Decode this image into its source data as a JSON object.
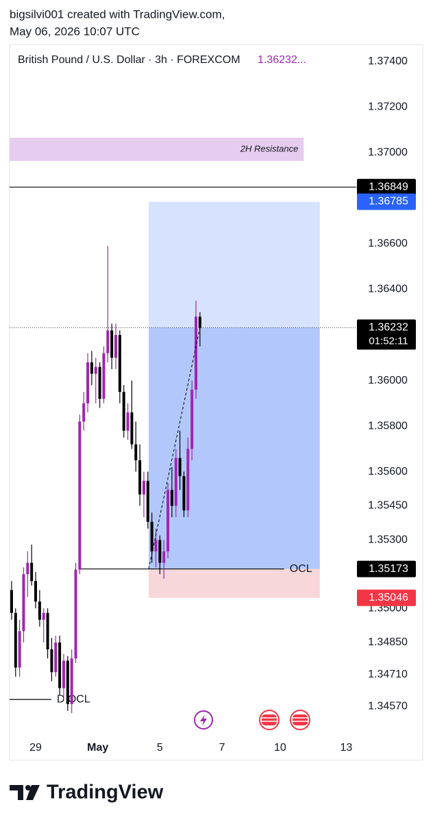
{
  "header": {
    "line1": "bigsilvi001 created with TradingView.com,",
    "line2": "May 06, 2026 10:07 UTC"
  },
  "chart_data": {
    "type": "candlestick",
    "title": "British Pound / U.S. Dollar · 3h · FOREXCOM",
    "last_price_label": "1.36232...",
    "up_color": "#9c27b0",
    "down_color": "#000000",
    "x": [
      0,
      1,
      2,
      3,
      4,
      5,
      6,
      7,
      8,
      9,
      10,
      11,
      12,
      13,
      14,
      15,
      16,
      17,
      18,
      19,
      20,
      21,
      22,
      23,
      24,
      25,
      26,
      27,
      28,
      29,
      30,
      31,
      32,
      33,
      34,
      35,
      36,
      37,
      38,
      39,
      40,
      41,
      42,
      43,
      44,
      45,
      46,
      47
    ],
    "open": [
      1.3508,
      1.3498,
      1.3474,
      1.349,
      1.3515,
      1.352,
      1.3512,
      1.3503,
      1.3495,
      1.3498,
      1.3482,
      1.3472,
      1.3485,
      1.3465,
      1.3477,
      1.3458,
      1.3478,
      1.3517,
      1.3582,
      1.359,
      1.3608,
      1.3603,
      1.3606,
      1.3592,
      1.3612,
      1.3622,
      1.361,
      1.362,
      1.3595,
      1.3578,
      1.3586,
      1.3572,
      1.3565,
      1.355,
      1.3556,
      1.3538,
      1.3525,
      1.353,
      1.352,
      1.3525,
      1.3552,
      1.3545,
      1.3566,
      1.3558,
      1.3543,
      1.357,
      1.3596,
      1.3628
    ],
    "high": [
      1.3512,
      1.35,
      1.3495,
      1.3518,
      1.3525,
      1.3528,
      1.3516,
      1.3508,
      1.35,
      1.35,
      1.3487,
      1.3488,
      1.3488,
      1.348,
      1.3479,
      1.3482,
      1.352,
      1.3585,
      1.3595,
      1.3612,
      1.3613,
      1.361,
      1.3608,
      1.3615,
      1.3659,
      1.3625,
      1.3625,
      1.3622,
      1.3598,
      1.359,
      1.36,
      1.3582,
      1.3572,
      1.356,
      1.356,
      1.3542,
      1.3535,
      1.3532,
      1.353,
      1.3555,
      1.3562,
      1.357,
      1.3578,
      1.356,
      1.3575,
      1.36,
      1.3635,
      1.363
    ],
    "low": [
      1.3495,
      1.347,
      1.347,
      1.3485,
      1.3505,
      1.351,
      1.35,
      1.3492,
      1.3485,
      1.3478,
      1.3468,
      1.347,
      1.3462,
      1.346,
      1.3455,
      1.3454,
      1.3476,
      1.3515,
      1.3578,
      1.3586,
      1.3598,
      1.359,
      1.3588,
      1.359,
      1.3608,
      1.3605,
      1.3605,
      1.359,
      1.3575,
      1.3574,
      1.357,
      1.356,
      1.3545,
      1.354,
      1.3535,
      1.352,
      1.3518,
      1.3515,
      1.3513,
      1.3522,
      1.354,
      1.354,
      1.3552,
      1.354,
      1.354,
      1.3565,
      1.3592,
      1.3615
    ],
    "close": [
      1.3498,
      1.3474,
      1.349,
      1.3515,
      1.352,
      1.3512,
      1.3503,
      1.3495,
      1.3498,
      1.3482,
      1.3472,
      1.3485,
      1.3465,
      1.3477,
      1.3458,
      1.3478,
      1.3517,
      1.3582,
      1.359,
      1.3608,
      1.3603,
      1.3606,
      1.3592,
      1.3612,
      1.3622,
      1.361,
      1.362,
      1.3595,
      1.3578,
      1.3586,
      1.3572,
      1.3565,
      1.355,
      1.3556,
      1.3538,
      1.3525,
      1.353,
      1.352,
      1.3525,
      1.3552,
      1.3545,
      1.3566,
      1.3558,
      1.3543,
      1.357,
      1.3596,
      1.3628,
      1.36232
    ],
    "xlim": [
      -0.5,
      86
    ],
    "xticks": [
      {
        "value": 6,
        "label": "29"
      },
      {
        "value": 21.5,
        "label": "May"
      },
      {
        "value": 37,
        "label": "5"
      },
      {
        "value": 52.5,
        "label": "7"
      },
      {
        "value": 67,
        "label": "10"
      },
      {
        "value": 83.5,
        "label": "13"
      }
    ],
    "ylim": [
      1.34438,
      1.37475
    ],
    "yticks": [
      {
        "value": 1.374,
        "label": "1.37400"
      },
      {
        "value": 1.372,
        "label": "1.37200"
      },
      {
        "value": 1.37,
        "label": "1.37000"
      },
      {
        "value": 1.366,
        "label": "1.36600"
      },
      {
        "value": 1.364,
        "label": "1.36400"
      },
      {
        "value": 1.36,
        "label": "1.36000"
      },
      {
        "value": 1.358,
        "label": "1.35800"
      },
      {
        "value": 1.356,
        "label": "1.35600"
      },
      {
        "value": 1.3545,
        "label": "1.35450"
      },
      {
        "value": 1.353,
        "label": "1.35300"
      },
      {
        "value": 1.35,
        "label": "1.35000"
      },
      {
        "value": 1.3485,
        "label": "1.34850"
      },
      {
        "value": 1.3471,
        "label": "1.34710"
      },
      {
        "value": 1.3457,
        "label": "1.34570"
      }
    ],
    "zone": {
      "label": "2H Resistance",
      "top": 1.37066,
      "bottom": 1.36964,
      "x_end": 72.9,
      "color": "#e6cdef"
    },
    "position": {
      "target": 1.36785,
      "entry": 1.35173,
      "stop": 1.35046,
      "x_start": 34.2,
      "x_end": 76.9
    },
    "lines": [
      {
        "value": 1.36849
      },
      {
        "value": 1.35173,
        "label": "OCL",
        "x_start": 16.8,
        "x_end": 68
      },
      {
        "value": 1.346,
        "label": "D OCL",
        "x_start": -0.5,
        "x_end": 9.9
      }
    ],
    "countdown": "01:52:11",
    "badges": [
      {
        "value": 1.36849,
        "color": "#000000"
      },
      {
        "value": 1.36785,
        "color": "#2962ff"
      },
      {
        "value": 1.36232,
        "color": "#000000"
      },
      {
        "value": 1.35173,
        "color": "#000000"
      },
      {
        "value": 1.35046,
        "color": "#f23645"
      }
    ]
  },
  "footer": {
    "brand": "TradingView"
  }
}
